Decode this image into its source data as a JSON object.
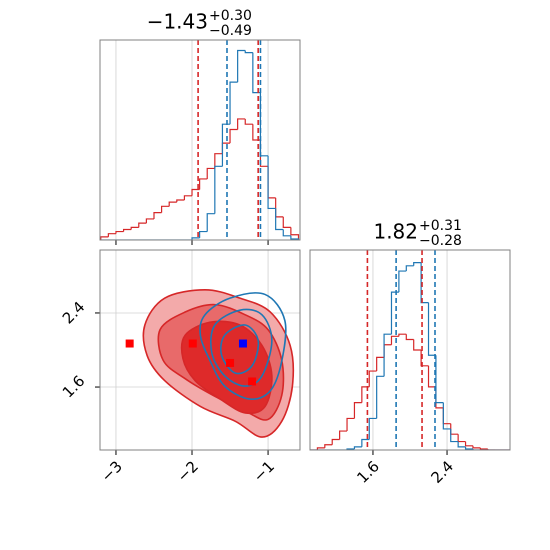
{
  "chart_data": [
    {
      "type": "histogram",
      "title": "−1.43",
      "title_sup": "+0.30",
      "title_sub": "−0.49",
      "xlim": [
        -3.21,
        -0.58
      ],
      "xticks": [
        -3,
        -2,
        -1
      ],
      "tick_labels": false,
      "ylim": [
        0,
        190
      ],
      "grid": true,
      "bins": [
        -3.2,
        -3.1,
        -3.0,
        -2.9,
        -2.8,
        -2.7,
        -2.6,
        -2.5,
        -2.4,
        -2.3,
        -2.2,
        -2.1,
        -2.0,
        -1.9,
        -1.8,
        -1.7,
        -1.6,
        -1.5,
        -1.4,
        -1.3,
        -1.2,
        -1.1,
        -1.0,
        -0.9,
        -0.8,
        -0.7,
        -0.6
      ],
      "series": [
        {
          "color": "#d62728",
          "values": [
            3,
            6,
            8,
            10,
            12,
            16,
            20,
            26,
            32,
            36,
            38,
            42,
            48,
            58,
            68,
            82,
            92,
            105,
            115,
            110,
            95,
            70,
            40,
            22,
            12,
            5
          ],
          "quantiles": [
            -1.92,
            -1.13
          ]
        },
        {
          "color": "#1f77b4",
          "values": [
            0,
            0,
            0,
            0,
            0,
            0,
            0,
            0,
            0,
            0,
            0,
            0,
            2,
            8,
            25,
            70,
            110,
            150,
            180,
            178,
            140,
            80,
            30,
            10,
            4,
            1
          ],
          "quantiles": [
            -1.54,
            -1.1
          ]
        }
      ]
    },
    {
      "type": "contour",
      "xlim": [
        -3.21,
        -0.58
      ],
      "ylim": [
        0.92,
        3.08
      ],
      "grid": true,
      "xticks": [
        {
          "value": -3,
          "label": "−3"
        },
        {
          "value": -2,
          "label": "−2"
        },
        {
          "value": -1,
          "label": "−1"
        }
      ],
      "yticks": [
        1.6,
        2.4
      ],
      "contours": [
        {
          "color": "#d62728",
          "fill": "#f3aaaa",
          "x": [
            -2.62,
            -2.36,
            -1.83,
            -1.37,
            -0.97,
            -0.71,
            -0.68,
            -0.82,
            -1.08,
            -1.43,
            -1.89,
            -2.36,
            -2.59
          ],
          "y": [
            2.27,
            2.56,
            2.65,
            2.56,
            2.41,
            2.05,
            1.61,
            1.23,
            1.06,
            1.23,
            1.39,
            1.67,
            1.94
          ]
        },
        {
          "color": "#d62728",
          "fill": "#e86a6a",
          "x": [
            -2.42,
            -2.09,
            -1.7,
            -1.3,
            -1.0,
            -0.82,
            -0.82,
            -1.0,
            -1.3,
            -1.7,
            -2.09,
            -2.38
          ],
          "y": [
            2.22,
            2.41,
            2.49,
            2.38,
            2.22,
            1.89,
            1.51,
            1.25,
            1.34,
            1.5,
            1.69,
            1.89
          ]
        },
        {
          "color": "#d62728",
          "fill": "#de2a2a",
          "x": [
            -2.09,
            -1.76,
            -1.37,
            -1.08,
            -0.95,
            -1.04,
            -1.3,
            -1.63,
            -1.96,
            -2.12
          ],
          "y": [
            2.16,
            2.3,
            2.27,
            2.05,
            1.72,
            1.39,
            1.32,
            1.47,
            1.67,
            1.91
          ]
        },
        {
          "color": "#1f77b4",
          "fill": "none",
          "x": [
            -1.83,
            -1.5,
            -1.04,
            -0.78,
            -0.82,
            -0.97,
            -1.24,
            -1.57,
            -1.76,
            -1.89
          ],
          "y": [
            2.38,
            2.56,
            2.6,
            2.32,
            1.88,
            1.56,
            1.47,
            1.61,
            1.88,
            2.16
          ]
        },
        {
          "color": "#1f77b4",
          "fill": "none",
          "x": [
            -1.7,
            -1.37,
            -1.08,
            -0.95,
            -1.08,
            -1.3,
            -1.57,
            -1.74
          ],
          "y": [
            2.27,
            2.43,
            2.38,
            2.1,
            1.72,
            1.61,
            1.72,
            1.97
          ]
        },
        {
          "color": "#1f77b4",
          "fill": "none",
          "x": [
            -1.57,
            -1.3,
            -1.13,
            -1.21,
            -1.43,
            -1.61
          ],
          "y": [
            2.16,
            2.27,
            2.1,
            1.83,
            1.75,
            1.94
          ]
        }
      ],
      "points": [
        {
          "color": "#ff0000",
          "x": [
            -2.82,
            -1.99,
            -1.5,
            -1.21
          ],
          "y": [
            2.07,
            2.07,
            1.86,
            1.66
          ]
        },
        {
          "color": "#0000ff",
          "x": [
            -1.33
          ],
          "y": [
            2.07
          ]
        }
      ]
    },
    {
      "type": "histogram",
      "title": "1.82",
      "title_sup": "+0.31",
      "title_sub": "−0.28",
      "xlim": [
        0.92,
        3.08
      ],
      "xticks": [
        1.6,
        2.4
      ],
      "tick_labels": true,
      "ylim": [
        0,
        190
      ],
      "grid": true,
      "bins": [
        0.92,
        1.0,
        1.08,
        1.16,
        1.24,
        1.32,
        1.4,
        1.48,
        1.56,
        1.64,
        1.72,
        1.8,
        1.88,
        1.96,
        2.04,
        2.12,
        2.2,
        2.28,
        2.36,
        2.44,
        2.52,
        2.6,
        2.68,
        2.76,
        2.84,
        2.92,
        3.0,
        3.08
      ],
      "series": [
        {
          "color": "#d62728",
          "values": [
            0,
            2,
            5,
            10,
            18,
            30,
            45,
            60,
            75,
            88,
            100,
            108,
            110,
            105,
            95,
            80,
            60,
            40,
            25,
            15,
            8,
            4,
            2,
            1,
            0,
            0,
            0
          ],
          "quantiles": [
            1.54,
            2.13
          ]
        },
        {
          "color": "#1f77b4",
          "values": [
            0,
            0,
            0,
            0,
            0,
            1,
            3,
            10,
            30,
            70,
            110,
            150,
            170,
            175,
            178,
            140,
            90,
            45,
            20,
            8,
            3,
            1,
            0,
            0,
            0,
            0,
            0
          ],
          "quantiles": [
            1.85,
            2.27
          ]
        }
      ]
    }
  ]
}
